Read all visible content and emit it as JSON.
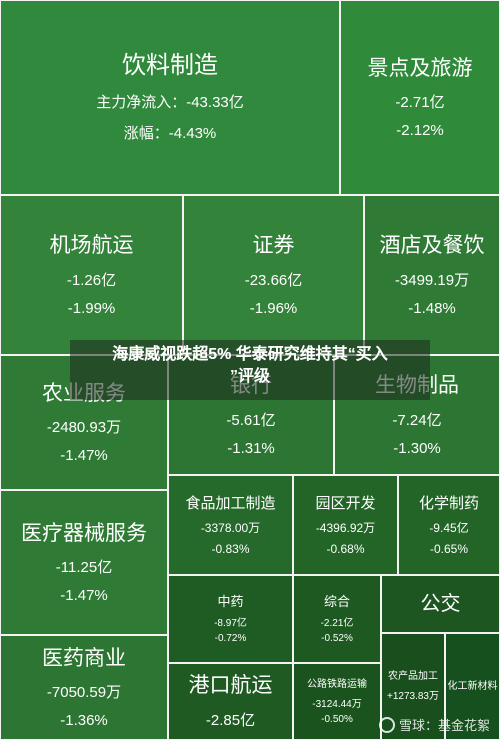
{
  "colors": {
    "c1": "#2f8a3d",
    "c2": "#2a8138",
    "c3": "#3a9446",
    "c4": "#337a37",
    "c5": "#2c7131",
    "c6": "#26692c",
    "c7": "#1f5c25",
    "c8": "#246429",
    "c9": "#1e5a22",
    "c10": "#2d7a33",
    "c11": "#236027",
    "c12": "#1c5320",
    "c13": "#195020",
    "c14": "#175022"
  },
  "tiles": {
    "yinliao": {
      "name": "饮料制造",
      "inflow": "主力净流入：-43.33亿",
      "change": "涨幅：-4.43%"
    },
    "jingdian": {
      "name": "景点及旅游",
      "inflow": "-2.71亿",
      "change": "-2.12%"
    },
    "jichang": {
      "name": "机场航运",
      "inflow": "-1.26亿",
      "change": "-1.99%"
    },
    "zhengquan": {
      "name": "证券",
      "inflow": "-23.66亿",
      "change": "-1.96%"
    },
    "jiudian": {
      "name": "酒店及餐饮",
      "inflow": "-3499.19万",
      "change": "-1.48%"
    },
    "nongye": {
      "name": "农业服务",
      "inflow": "-2480.93万",
      "change": "-1.47%"
    },
    "yinhang": {
      "name": "银行",
      "inflow": "-5.61亿",
      "change": "-1.31%"
    },
    "shengwu": {
      "name": "生物制品",
      "inflow": "-7.24亿",
      "change": "-1.30%"
    },
    "yiliao": {
      "name": "医疗器械服务",
      "inflow": "-11.25亿",
      "change": "-1.47%"
    },
    "shipin": {
      "name": "食品加工制造",
      "inflow": "-3378.00万",
      "change": "-0.83%"
    },
    "yuanqu": {
      "name": "园区开发",
      "inflow": "-4396.92万",
      "change": "-0.68%"
    },
    "huaxue": {
      "name": "化学制药",
      "inflow": "-9.45亿",
      "change": "-0.65%"
    },
    "zhongyao": {
      "name": "中药",
      "inflow": "-8.97亿",
      "change": "-0.72%"
    },
    "zonghe": {
      "name": "综合",
      "inflow": "-2.21亿",
      "change": "-0.52%"
    },
    "gonggong": {
      "name": "公交"
    },
    "yiyao": {
      "name": "医药商业",
      "inflow": "-7050.59万",
      "change": "-1.36%"
    },
    "gangkou": {
      "name": "港口航运",
      "inflow": "-2.85亿"
    },
    "gonglu": {
      "name": "公路铁路运输",
      "inflow": "-3124.44万",
      "change": "-0.50%"
    },
    "nongchanpin": {
      "name": "农产品加工",
      "inflow": "+1273.83万"
    },
    "huagong": {
      "name": "化工新材料"
    }
  },
  "overlay": {
    "line1": "海康威视跌超5% 华泰研究维持其“买入",
    "line2": "”评级",
    "ghost": "海康威视跌超5% 华泰研究维持其“买入"
  },
  "watermark": {
    "text": "雪球：基金花絮"
  }
}
